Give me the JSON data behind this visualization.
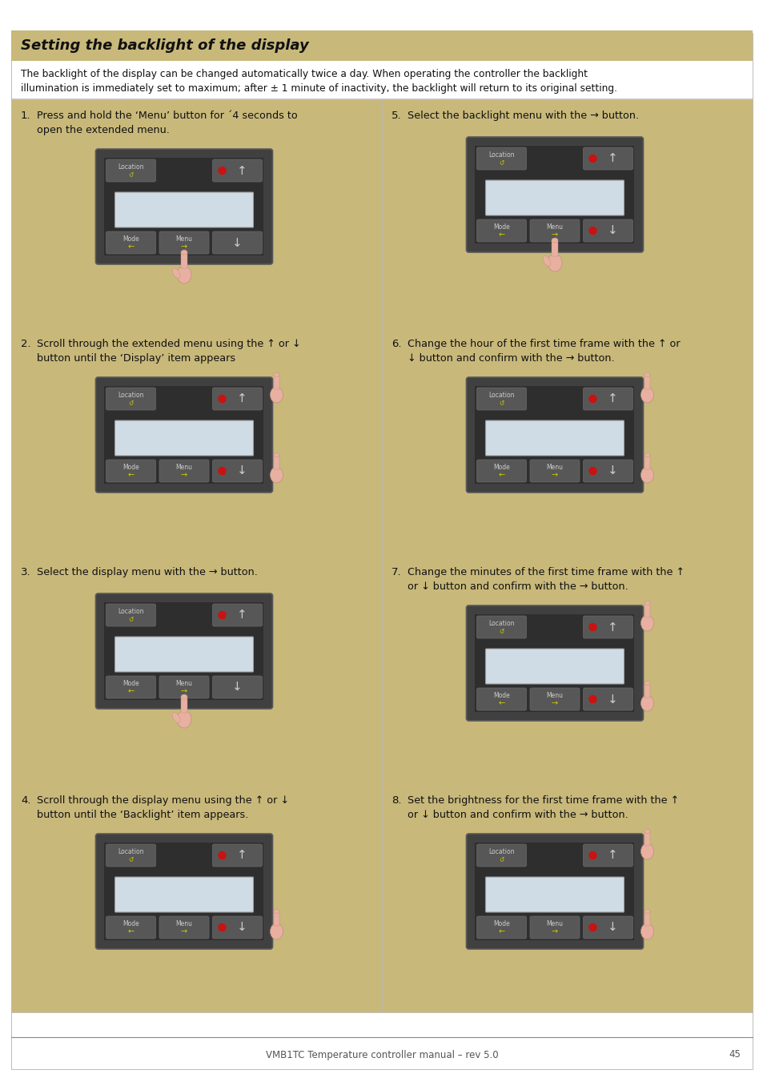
{
  "page_bg": "#ffffff",
  "title_bg": "#c8b87a",
  "panel_bg": "#c8b87a",
  "device_outer": "#404040",
  "device_inner": "#2e2e2e",
  "button_color": "#575757",
  "screen_color": "#d0dce5",
  "led_color": "#cc1111",
  "footer_line_color": "#888888",
  "footer_text_color": "#555555",
  "title_text": "Setting the backlight of the display",
  "intro_text": "The backlight of the display can be changed automatically twice a day. When operating the controller the backlight\nillumination is immediately set to maximum; after ± 1 minute of inactivity, the backlight will return to its original setting.",
  "footer_text": "VMB1TC Temperature controller manual – rev 5.0",
  "footer_page": "45",
  "steps": [
    "Press and hold the ‘Menu’ button for ´4 seconds to\nopen the extended menu.",
    "Scroll through the extended menu using the ↑ or ↓\nbutton until the ‘Display’ item appears",
    "Select the display menu with the → button.",
    "Scroll through the display menu using the ↑ or ↓\nbutton until the ‘Backlight’ item appears.",
    "Select the backlight menu with the → button.",
    "Change the hour of the first time frame with the ↑ or\n↓ button and confirm with the → button.",
    "Change the minutes of the first time frame with the ↑\nor ↓ button and confirm with the → button.",
    "Set the brightness for the first time frame with the ↑\nor ↓ button and confirm with the → button."
  ],
  "step_has_up_hand": [
    false,
    true,
    false,
    false,
    false,
    true,
    true,
    true
  ],
  "step_has_down_hand": [
    true,
    true,
    false,
    true,
    true,
    true,
    true,
    true
  ],
  "step_has_menu_hand": [
    true,
    false,
    true,
    false,
    true,
    false,
    false,
    false
  ],
  "step_led_top": [
    true,
    true,
    true,
    true,
    true,
    true,
    true,
    true
  ],
  "step_led_bot": [
    false,
    true,
    false,
    true,
    true,
    true,
    true,
    true
  ]
}
